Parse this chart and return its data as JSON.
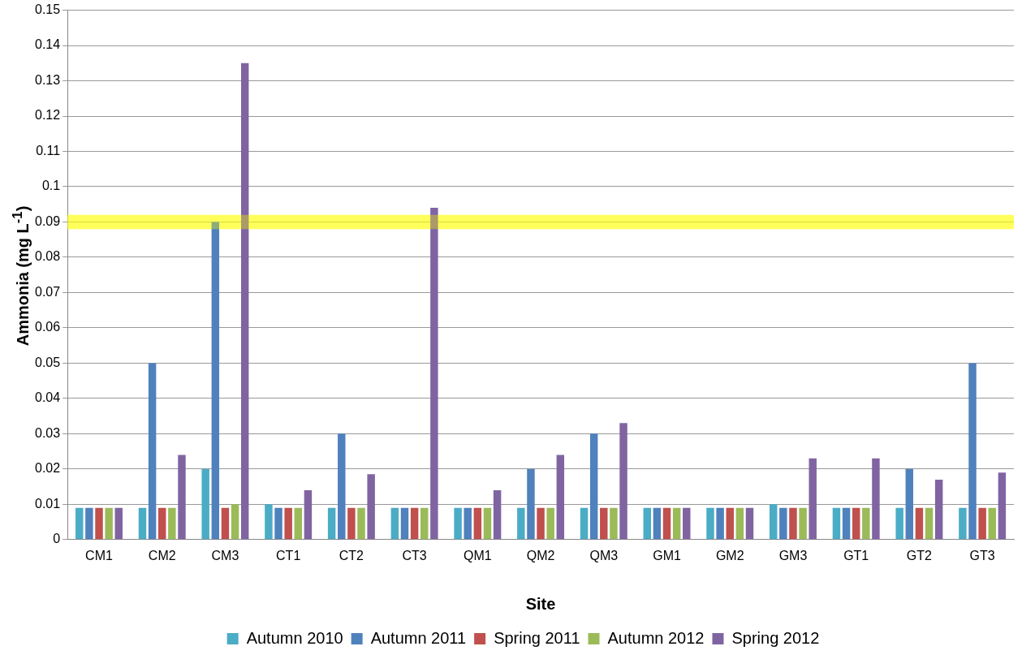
{
  "chart_data": {
    "type": "bar",
    "xlabel": "Site",
    "ylabel": "Ammonia (mg L$^{-1}$)",
    "categories": [
      "CM1",
      "CM2",
      "CM3",
      "CT1",
      "CT2",
      "CT3",
      "QM1",
      "QM2",
      "QM3",
      "GM1",
      "GM2",
      "GM3",
      "GT1",
      "GT2",
      "GT3"
    ],
    "series": [
      {
        "name": "Autumn 2010",
        "color": "#4bacc6",
        "values": [
          0.009,
          0.009,
          0.02,
          0.01,
          0.009,
          0.009,
          0.009,
          0.009,
          0.009,
          0.009,
          0.009,
          0.01,
          0.009,
          0.009,
          0.009
        ]
      },
      {
        "name": "Autumn 2011",
        "color": "#4f81bd",
        "values": [
          0.009,
          0.05,
          0.09,
          0.009,
          0.03,
          0.009,
          0.009,
          0.02,
          0.03,
          0.009,
          0.009,
          0.009,
          0.009,
          0.02,
          0.05
        ]
      },
      {
        "name": "Spring 2011",
        "color": "#c0504d",
        "values": [
          0.009,
          0.009,
          0.009,
          0.009,
          0.009,
          0.009,
          0.009,
          0.009,
          0.009,
          0.009,
          0.009,
          0.009,
          0.009,
          0.009,
          0.009
        ]
      },
      {
        "name": "Autumn 2012",
        "color": "#9bbb59",
        "values": [
          0.009,
          0.009,
          0.01,
          0.009,
          0.009,
          0.009,
          0.009,
          0.009,
          0.009,
          0.009,
          0.009,
          0.009,
          0.009,
          0.009,
          0.009
        ]
      },
      {
        "name": "Spring 2012",
        "color": "#8064a2",
        "values": [
          0.009,
          0.024,
          0.135,
          0.014,
          0.0185,
          0.094,
          0.014,
          0.024,
          0.033,
          0.009,
          0.009,
          0.023,
          0.023,
          0.017,
          0.019
        ]
      }
    ],
    "ylim": [
      0,
      0.15
    ],
    "yticks": [
      0,
      0.01,
      0.02,
      0.03,
      0.04,
      0.05,
      0.06,
      0.07,
      0.08,
      0.09,
      0.1,
      0.11,
      0.12,
      0.13,
      0.14,
      0.15
    ],
    "bands": [
      {
        "axis": "y",
        "from": 0.088,
        "to": 0.092,
        "color": "#ffff00"
      }
    ],
    "grid": "y",
    "legend": "bottom"
  }
}
